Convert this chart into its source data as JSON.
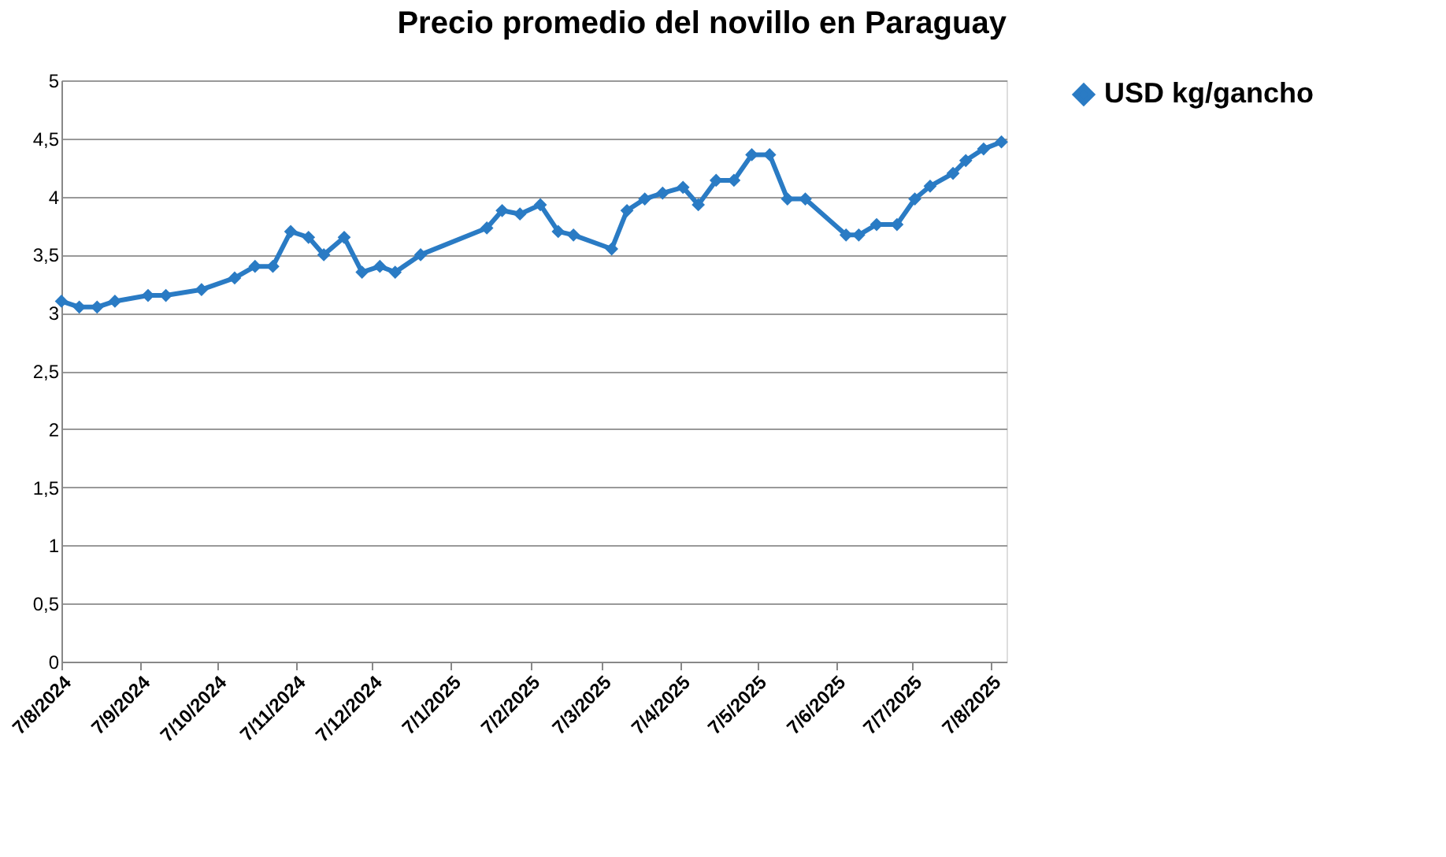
{
  "chart_data": {
    "type": "line",
    "title": "Precio promedio del novillo en Paraguay",
    "x": [
      "2024-08-07",
      "2024-08-14",
      "2024-08-21",
      "2024-08-28",
      "2024-09-10",
      "2024-09-17",
      "2024-10-01",
      "2024-10-14",
      "2024-10-22",
      "2024-10-29",
      "2024-11-05",
      "2024-11-12",
      "2024-11-18",
      "2024-11-26",
      "2024-12-03",
      "2024-12-10",
      "2024-12-16",
      "2024-12-26",
      "2025-01-21",
      "2025-01-27",
      "2025-02-03",
      "2025-02-11",
      "2025-02-18",
      "2025-02-24",
      "2025-03-11",
      "2025-03-17",
      "2025-03-24",
      "2025-03-31",
      "2025-04-08",
      "2025-04-14",
      "2025-04-21",
      "2025-04-28",
      "2025-05-05",
      "2025-05-12",
      "2025-05-19",
      "2025-05-26",
      "2025-06-11",
      "2025-06-16",
      "2025-06-23",
      "2025-07-01",
      "2025-07-08",
      "2025-07-14",
      "2025-07-23",
      "2025-07-28",
      "2025-08-04",
      "2025-08-11"
    ],
    "series": [
      {
        "name": "USD kg/gancho",
        "color": "#2a7bc4",
        "values": [
          3.1,
          3.05,
          3.05,
          3.1,
          3.15,
          3.15,
          3.2,
          3.3,
          3.4,
          3.4,
          3.7,
          3.65,
          3.5,
          3.65,
          3.35,
          3.4,
          3.35,
          3.5,
          3.73,
          3.88,
          3.85,
          3.93,
          3.7,
          3.67,
          3.55,
          3.88,
          3.98,
          4.03,
          4.08,
          3.93,
          4.14,
          4.14,
          4.36,
          4.36,
          3.98,
          3.98,
          3.67,
          3.67,
          3.76,
          3.76,
          3.98,
          4.09,
          4.2,
          4.31,
          4.41,
          4.47
        ]
      }
    ],
    "xlim": [
      "2024-08-07",
      "2025-08-13"
    ],
    "xticks": [
      {
        "value": "2024-08-07",
        "label": "7/8/2024"
      },
      {
        "value": "2024-09-07",
        "label": "7/9/2024"
      },
      {
        "value": "2024-10-07",
        "label": "7/10/2024"
      },
      {
        "value": "2024-11-07",
        "label": "7/11/2024"
      },
      {
        "value": "2024-12-07",
        "label": "7/12/2024"
      },
      {
        "value": "2025-01-07",
        "label": "7/1/2025"
      },
      {
        "value": "2025-02-07",
        "label": "7/2/2025"
      },
      {
        "value": "2025-03-07",
        "label": "7/3/2025"
      },
      {
        "value": "2025-04-07",
        "label": "7/4/2025"
      },
      {
        "value": "2025-05-07",
        "label": "7/5/2025"
      },
      {
        "value": "2025-06-07",
        "label": "7/6/2025"
      },
      {
        "value": "2025-07-07",
        "label": "7/7/2025"
      },
      {
        "value": "2025-08-07",
        "label": "7/8/2025"
      }
    ],
    "ylim": [
      0,
      5
    ],
    "yticks": [
      0,
      {
        "value": 0.5,
        "label": "0,5"
      },
      1,
      {
        "value": 1.5,
        "label": "1,5"
      },
      2,
      {
        "value": 2.5,
        "label": "2,5"
      },
      3,
      {
        "value": 3.5,
        "label": "3,5"
      },
      4,
      {
        "value": 4.5,
        "label": "4,5"
      },
      5
    ],
    "grid": "y",
    "legend": "right",
    "marker": "diamond",
    "line_style": "solid"
  }
}
